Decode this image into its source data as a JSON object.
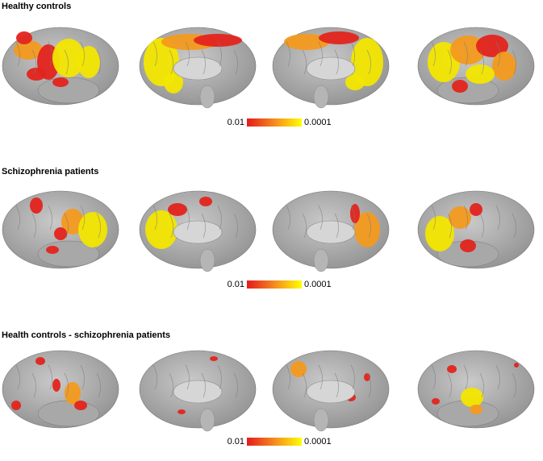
{
  "panels": [
    {
      "title": "Healthy controls",
      "colorbar": {
        "min_label": "0.01",
        "max_label": "0.0001"
      }
    },
    {
      "title": "Schizophrenia patients",
      "colorbar": {
        "min_label": "0.01",
        "max_label": "0.0001"
      }
    },
    {
      "title": "Health controls - schizophrenia patients",
      "colorbar": {
        "min_label": "0.01",
        "max_label": "0.0001"
      }
    }
  ]
}
